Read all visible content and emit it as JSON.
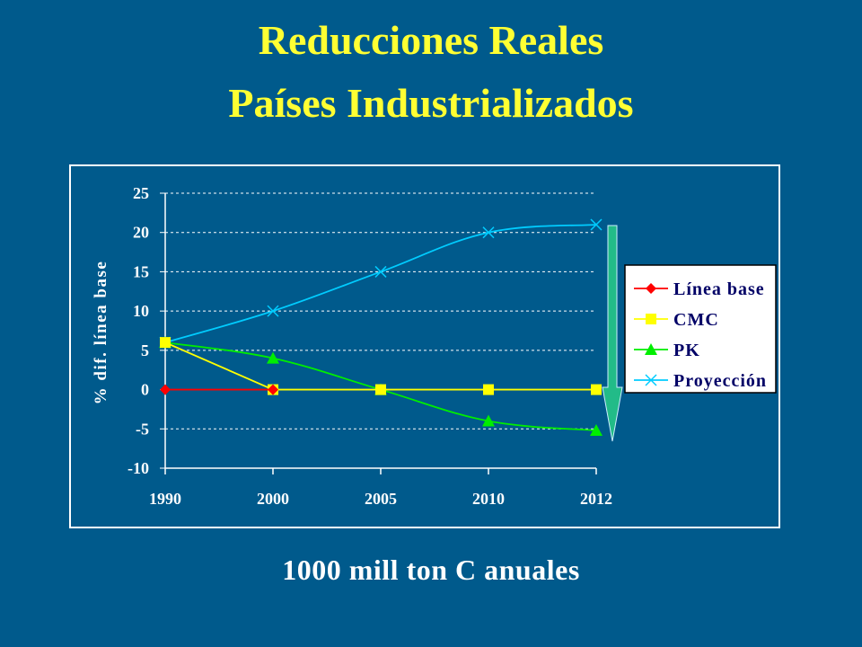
{
  "slide": {
    "title_line1": "Reducciones Reales",
    "title_line2": "Países Industrializados",
    "caption": "1000 mill ton C anuales"
  },
  "colors": {
    "background": "#005a8c",
    "title": "#ffff33",
    "text": "#ffffff",
    "arrow": "#22bb88"
  },
  "chart_data": {
    "type": "line",
    "title": "",
    "xlabel": "",
    "ylabel": "% dif. línea base",
    "categories": [
      "1990",
      "2000",
      "2005",
      "2010",
      "2012"
    ],
    "ylim": [
      -10,
      25
    ],
    "yticks": [
      25,
      20,
      15,
      10,
      5,
      0,
      -5,
      -10
    ],
    "grid": true,
    "legend_position": "right",
    "series": [
      {
        "name": "Línea base",
        "values": [
          0,
          0,
          null,
          null,
          null
        ],
        "color": "#ff0000",
        "marker": "diamond"
      },
      {
        "name": "CMC",
        "values": [
          6,
          0,
          0,
          0,
          0
        ],
        "color": "#ffff00",
        "marker": "square"
      },
      {
        "name": "PK",
        "values": [
          6,
          4,
          0,
          -4,
          -5.2
        ],
        "color": "#00ee00",
        "marker": "triangle"
      },
      {
        "name": "Proyección",
        "values": [
          6,
          10,
          15,
          20,
          21
        ],
        "color": "#00ccff",
        "marker": "x"
      }
    ],
    "annotation": "down-arrow"
  }
}
